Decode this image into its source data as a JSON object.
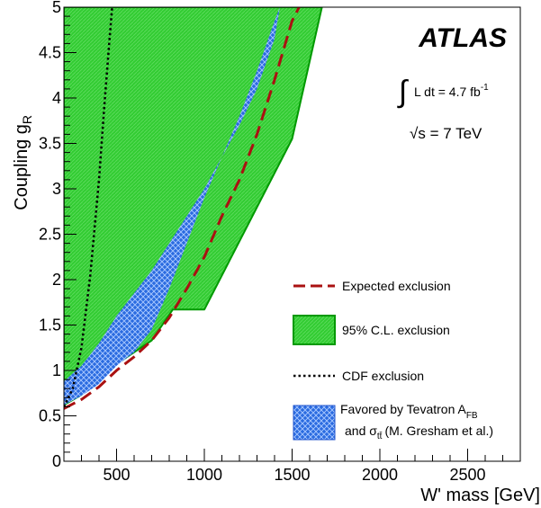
{
  "chart_data": {
    "type": "area",
    "title": "",
    "xlabel": "W' mass [GeV]",
    "ylabel": "Coupling g",
    "ylabel_sub": "R",
    "xlim": [
      200,
      2800
    ],
    "ylim": [
      0,
      5
    ],
    "xticks": [
      500,
      1000,
      1500,
      2000,
      2500
    ],
    "yticks": [
      0,
      0.5,
      1,
      1.5,
      2,
      2.5,
      3,
      3.5,
      4,
      4.5,
      5
    ],
    "xtick_labels": [
      "500",
      "1000",
      "1500",
      "2000",
      "2500"
    ],
    "ytick_labels": [
      "0",
      "0.5",
      "1",
      "1.5",
      "2",
      "2.5",
      "3",
      "3.5",
      "4",
      "4.5",
      "5"
    ],
    "grid": false,
    "legend_position": "right",
    "series": [
      {
        "name": "95% C.L. exclusion",
        "kind": "band",
        "color": "#33cc33",
        "edge_color": "#009900",
        "x": [
          200,
          200,
          1670,
          1500,
          1000,
          820,
          700,
          600,
          500,
          400,
          300,
          200
        ],
        "y": [
          0.62,
          5.0,
          5.0,
          3.55,
          1.67,
          1.67,
          1.33,
          1.2,
          1.07,
          0.9,
          0.73,
          0.62
        ]
      },
      {
        "name": "Favored by Tevatron A",
        "name_sub": "FB",
        "name_line2": "and σ",
        "name_line2_sub": "tt̄",
        "name_line2_rest": "(M. Gresham et al.)",
        "kind": "hatched-band",
        "color": "#2266dd",
        "upper": {
          "x": [
            200,
            300,
            400,
            500,
            600,
            700,
            800,
            900,
            1000,
            1100,
            1200,
            1300,
            1400,
            1430
          ],
          "y": [
            0.88,
            1.05,
            1.3,
            1.6,
            1.85,
            2.1,
            2.4,
            2.7,
            3.0,
            3.35,
            3.7,
            4.1,
            4.65,
            5.0
          ]
        },
        "lower": {
          "x": [
            200,
            300,
            400,
            500,
            600,
            700,
            800,
            900,
            1000,
            1100,
            1200,
            1300,
            1400,
            1430
          ],
          "y": [
            0.62,
            0.72,
            0.85,
            1.05,
            1.2,
            1.45,
            1.9,
            2.4,
            2.9,
            3.35,
            3.8,
            4.3,
            4.85,
            5.0
          ]
        }
      },
      {
        "name": "Expected exclusion",
        "kind": "dashed-line",
        "color": "#aa1111",
        "x": [
          200,
          300,
          400,
          500,
          600,
          700,
          800,
          900,
          1000,
          1100,
          1200,
          1300,
          1400,
          1500,
          1540
        ],
        "y": [
          0.58,
          0.68,
          0.82,
          1.0,
          1.15,
          1.33,
          1.58,
          1.9,
          2.25,
          2.7,
          3.1,
          3.6,
          4.2,
          4.85,
          5.0
        ]
      },
      {
        "name": "CDF exclusion",
        "kind": "dotted-line",
        "color": "#000000",
        "x": [
          200,
          250,
          300,
          350,
          400,
          430,
          460,
          475
        ],
        "y": [
          0.6,
          0.8,
          1.25,
          2.05,
          3.1,
          3.9,
          4.65,
          5.0
        ]
      }
    ],
    "annotations": {
      "experiment": "ATLAS",
      "lumi_prefix": "∫",
      "lumi_text": "L dt = 4.7 fb",
      "lumi_sup": "-1",
      "energy_prefix": "√s",
      "energy_text": "= 7 TeV"
    }
  }
}
